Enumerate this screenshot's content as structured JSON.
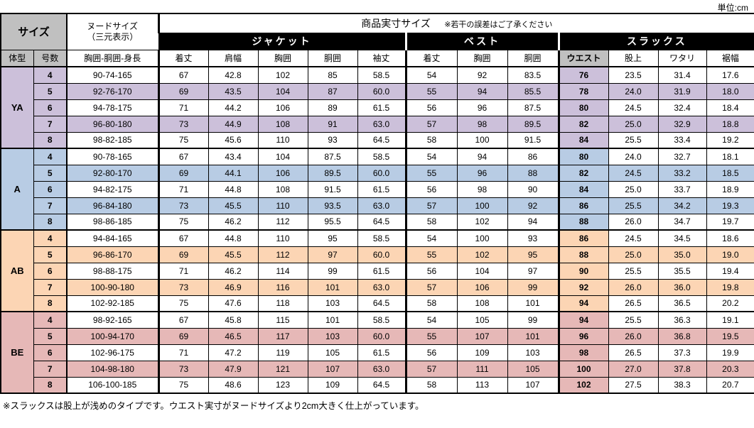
{
  "unit_label": "単位:cm",
  "footer_note": "※スラックスは股上が浅めのタイプです。ウエスト実寸がヌードサイズより2cm大きく仕上がっています。",
  "colors": {
    "header_gray": "#C0C0C0",
    "band_bg": "#000000",
    "band_text": "#FFFFFF",
    "ya": "#CCC0DA",
    "a": "#B8CCE4",
    "ab": "#FCD5B4",
    "be": "#E6B8B7"
  },
  "header": {
    "size_label": "サイズ",
    "nude_line1": "ヌードサイズ",
    "nude_line2": "（三元表示）",
    "product_label": "商品実寸サイズ",
    "product_note": "※若干の誤差はご了承ください",
    "body_type": "体型",
    "size_no": "号数",
    "nude_cols": "胸囲-胴囲-身長",
    "groups": [
      {
        "key": "jacket",
        "label": "ジャケット",
        "cols": [
          "着丈",
          "肩幅",
          "胸囲",
          "胴囲",
          "袖丈"
        ]
      },
      {
        "key": "vest",
        "label": "ベスト",
        "cols": [
          "着丈",
          "胸囲",
          "胴囲"
        ]
      },
      {
        "key": "slacks",
        "label": "スラックス",
        "cols": [
          "ウエスト",
          "股上",
          "ワタリ",
          "裾幅"
        ]
      }
    ]
  },
  "blocks": [
    {
      "body_type": "YA",
      "color": "#CCC0DA",
      "rows": [
        {
          "size": "4",
          "nude": "90-74-165",
          "jacket": [
            "67",
            "42.8",
            "102",
            "85",
            "58.5"
          ],
          "vest": [
            "54",
            "92",
            "83.5"
          ],
          "slacks": [
            "76",
            "23.5",
            "31.4",
            "17.6"
          ]
        },
        {
          "size": "5",
          "nude": "92-76-170",
          "jacket": [
            "69",
            "43.5",
            "104",
            "87",
            "60.0"
          ],
          "vest": [
            "55",
            "94",
            "85.5"
          ],
          "slacks": [
            "78",
            "24.0",
            "31.9",
            "18.0"
          ]
        },
        {
          "size": "6",
          "nude": "94-78-175",
          "jacket": [
            "71",
            "44.2",
            "106",
            "89",
            "61.5"
          ],
          "vest": [
            "56",
            "96",
            "87.5"
          ],
          "slacks": [
            "80",
            "24.5",
            "32.4",
            "18.4"
          ]
        },
        {
          "size": "7",
          "nude": "96-80-180",
          "jacket": [
            "73",
            "44.9",
            "108",
            "91",
            "63.0"
          ],
          "vest": [
            "57",
            "98",
            "89.5"
          ],
          "slacks": [
            "82",
            "25.0",
            "32.9",
            "18.8"
          ]
        },
        {
          "size": "8",
          "nude": "98-82-185",
          "jacket": [
            "75",
            "45.6",
            "110",
            "93",
            "64.5"
          ],
          "vest": [
            "58",
            "100",
            "91.5"
          ],
          "slacks": [
            "84",
            "25.5",
            "33.4",
            "19.2"
          ]
        }
      ]
    },
    {
      "body_type": "A",
      "color": "#B8CCE4",
      "rows": [
        {
          "size": "4",
          "nude": "90-78-165",
          "jacket": [
            "67",
            "43.4",
            "104",
            "87.5",
            "58.5"
          ],
          "vest": [
            "54",
            "94",
            "86"
          ],
          "slacks": [
            "80",
            "24.0",
            "32.7",
            "18.1"
          ]
        },
        {
          "size": "5",
          "nude": "92-80-170",
          "jacket": [
            "69",
            "44.1",
            "106",
            "89.5",
            "60.0"
          ],
          "vest": [
            "55",
            "96",
            "88"
          ],
          "slacks": [
            "82",
            "24.5",
            "33.2",
            "18.5"
          ]
        },
        {
          "size": "6",
          "nude": "94-82-175",
          "jacket": [
            "71",
            "44.8",
            "108",
            "91.5",
            "61.5"
          ],
          "vest": [
            "56",
            "98",
            "90"
          ],
          "slacks": [
            "84",
            "25.0",
            "33.7",
            "18.9"
          ]
        },
        {
          "size": "7",
          "nude": "96-84-180",
          "jacket": [
            "73",
            "45.5",
            "110",
            "93.5",
            "63.0"
          ],
          "vest": [
            "57",
            "100",
            "92"
          ],
          "slacks": [
            "86",
            "25.5",
            "34.2",
            "19.3"
          ]
        },
        {
          "size": "8",
          "nude": "98-86-185",
          "jacket": [
            "75",
            "46.2",
            "112",
            "95.5",
            "64.5"
          ],
          "vest": [
            "58",
            "102",
            "94"
          ],
          "slacks": [
            "88",
            "26.0",
            "34.7",
            "19.7"
          ]
        }
      ]
    },
    {
      "body_type": "AB",
      "color": "#FCD5B4",
      "rows": [
        {
          "size": "4",
          "nude": "94-84-165",
          "jacket": [
            "67",
            "44.8",
            "110",
            "95",
            "58.5"
          ],
          "vest": [
            "54",
            "100",
            "93"
          ],
          "slacks": [
            "86",
            "24.5",
            "34.5",
            "18.6"
          ]
        },
        {
          "size": "5",
          "nude": "96-86-170",
          "jacket": [
            "69",
            "45.5",
            "112",
            "97",
            "60.0"
          ],
          "vest": [
            "55",
            "102",
            "95"
          ],
          "slacks": [
            "88",
            "25.0",
            "35.0",
            "19.0"
          ]
        },
        {
          "size": "6",
          "nude": "98-88-175",
          "jacket": [
            "71",
            "46.2",
            "114",
            "99",
            "61.5"
          ],
          "vest": [
            "56",
            "104",
            "97"
          ],
          "slacks": [
            "90",
            "25.5",
            "35.5",
            "19.4"
          ]
        },
        {
          "size": "7",
          "nude": "100-90-180",
          "jacket": [
            "73",
            "46.9",
            "116",
            "101",
            "63.0"
          ],
          "vest": [
            "57",
            "106",
            "99"
          ],
          "slacks": [
            "92",
            "26.0",
            "36.0",
            "19.8"
          ]
        },
        {
          "size": "8",
          "nude": "102-92-185",
          "jacket": [
            "75",
            "47.6",
            "118",
            "103",
            "64.5"
          ],
          "vest": [
            "58",
            "108",
            "101"
          ],
          "slacks": [
            "94",
            "26.5",
            "36.5",
            "20.2"
          ]
        }
      ]
    },
    {
      "body_type": "BE",
      "color": "#E6B8B7",
      "rows": [
        {
          "size": "4",
          "nude": "98-92-165",
          "jacket": [
            "67",
            "45.8",
            "115",
            "101",
            "58.5"
          ],
          "vest": [
            "54",
            "105",
            "99"
          ],
          "slacks": [
            "94",
            "25.5",
            "36.3",
            "19.1"
          ]
        },
        {
          "size": "5",
          "nude": "100-94-170",
          "jacket": [
            "69",
            "46.5",
            "117",
            "103",
            "60.0"
          ],
          "vest": [
            "55",
            "107",
            "101"
          ],
          "slacks": [
            "96",
            "26.0",
            "36.8",
            "19.5"
          ]
        },
        {
          "size": "6",
          "nude": "102-96-175",
          "jacket": [
            "71",
            "47.2",
            "119",
            "105",
            "61.5"
          ],
          "vest": [
            "56",
            "109",
            "103"
          ],
          "slacks": [
            "98",
            "26.5",
            "37.3",
            "19.9"
          ]
        },
        {
          "size": "7",
          "nude": "104-98-180",
          "jacket": [
            "73",
            "47.9",
            "121",
            "107",
            "63.0"
          ],
          "vest": [
            "57",
            "111",
            "105"
          ],
          "slacks": [
            "100",
            "27.0",
            "37.8",
            "20.3"
          ]
        },
        {
          "size": "8",
          "nude": "106-100-185",
          "jacket": [
            "75",
            "48.6",
            "123",
            "109",
            "64.5"
          ],
          "vest": [
            "58",
            "113",
            "107"
          ],
          "slacks": [
            "102",
            "27.5",
            "38.3",
            "20.7"
          ]
        }
      ]
    }
  ]
}
